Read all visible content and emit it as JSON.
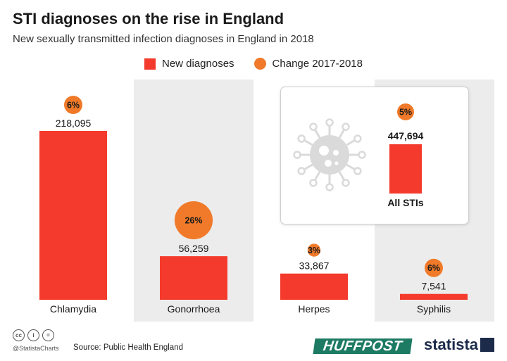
{
  "title": "STI diagnoses on the rise in England",
  "subtitle": "New sexually transmitted infection diagnoses in England in 2018",
  "legend": {
    "bar_label": "New diagnoses",
    "circle_label": "Change 2017-2018"
  },
  "colors": {
    "bar": "#f43a2d",
    "circle": "#f07a29",
    "column_shade": "#ececec",
    "virus_icon": "#dadada"
  },
  "chart_data": {
    "type": "bar",
    "categories": [
      "Chlamydia",
      "Gonorrhoea",
      "Herpes",
      "Syphilis"
    ],
    "values": [
      218095,
      56259,
      33867,
      7541
    ],
    "value_labels": [
      "218,095",
      "56,259",
      "33,867",
      "7,541"
    ],
    "change_pct": [
      6,
      26,
      3,
      6
    ],
    "change_labels": [
      "6%",
      "26%",
      "3%",
      "6%"
    ],
    "total": {
      "label": "All STIs",
      "value": 447694,
      "value_label": "447,694",
      "change_pct": 5,
      "change_label": "5%"
    },
    "ylim": [
      0,
      218095
    ],
    "grid": false,
    "legend_position": "top-center"
  },
  "footer": {
    "license_icons": [
      "cc-icon",
      "person-icon",
      "equals-icon"
    ],
    "license_glyphs": [
      "cc",
      "i",
      "="
    ],
    "handle": "@StatistaCharts",
    "source": "Source: Public Health England",
    "partner_logo": "HUFFPOST",
    "brand": "statista"
  }
}
